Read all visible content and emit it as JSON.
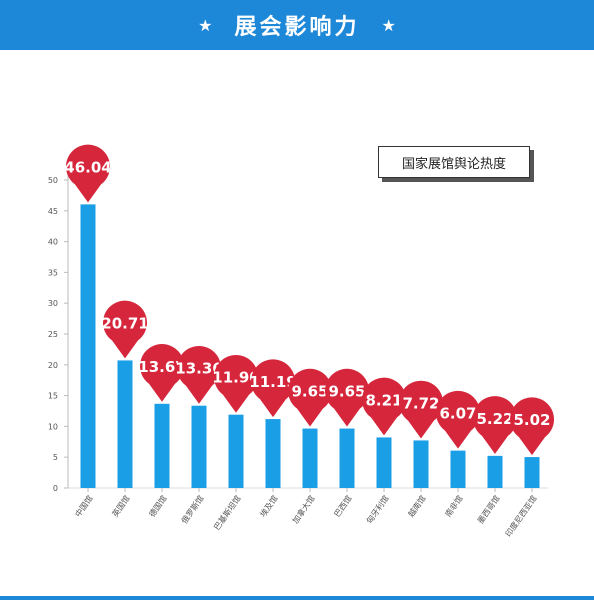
{
  "header": {
    "title": "展会影响力",
    "star_left": "★",
    "star_right": "★"
  },
  "colors": {
    "accent": "#1e88d8",
    "bar": "#1a9ee6",
    "pin": "#d6263b"
  },
  "chart_data": {
    "type": "bar",
    "title": "",
    "legend": "国家展馆舆论热度",
    "legend_placement": "top-right",
    "xlabel": "",
    "ylabel": "",
    "ylim": [
      0,
      50
    ],
    "yticks": [
      0,
      5,
      10,
      15,
      20,
      25,
      30,
      35,
      40,
      45,
      50
    ],
    "categories": [
      "中国馆",
      "英国馆",
      "德国馆",
      "俄罗斯馆",
      "巴基斯坦馆",
      "埃及馆",
      "加拿大馆",
      "巴西馆",
      "匈牙利馆",
      "越南馆",
      "南非馆",
      "墨西哥馆",
      "印度尼西亚馆"
    ],
    "values": [
      46.04,
      20.71,
      13.67,
      13.36,
      11.9,
      11.19,
      9.65,
      9.65,
      8.21,
      7.72,
      6.07,
      5.22,
      5.02
    ],
    "labels": [
      "46.04",
      "20.71",
      "13.67",
      "13.36",
      "11.90",
      "11.19",
      "9.65",
      "9.65",
      "8.21",
      "7.72",
      "6.07",
      "5.22",
      "5.02"
    ]
  }
}
